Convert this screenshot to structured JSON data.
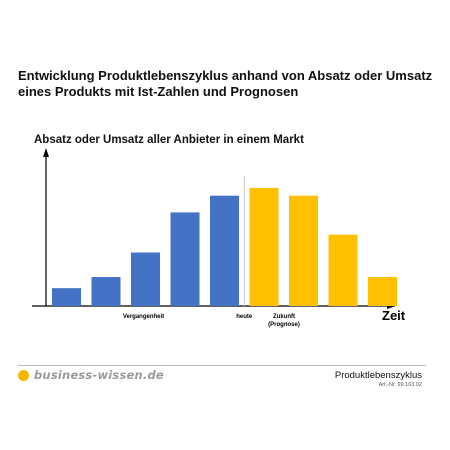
{
  "header": {
    "title": "Entwicklung Produktlebenszyklus anhand von Absatz oder Umsatz eines Produkts mit Ist-Zahlen und Prognosen"
  },
  "chart_data": {
    "type": "bar",
    "title": "Absatz oder Umsatz aller Anbieter in einem Markt",
    "xlabel": "Zeit",
    "ylabel": "",
    "ylim": [
      0,
      140
    ],
    "values": [
      16,
      26,
      48,
      84,
      99,
      106,
      99,
      64,
      26
    ],
    "bar_colors": [
      "#4472c4",
      "#4472c4",
      "#4472c4",
      "#4472c4",
      "#4472c4",
      "#ffc000",
      "#ffc000",
      "#ffc000",
      "#ffc000"
    ],
    "annotations": {
      "past": "Vergangenheit",
      "today": "heute",
      "future": "Zukunft",
      "future_sub": "(Prognose)"
    },
    "colors": {
      "actual": "#4472c4",
      "forecast": "#ffc000",
      "divider": "#c8c8c8"
    }
  },
  "footer": {
    "logo_text": "business-wissen.de",
    "doc_title": "Produktlebenszyklus",
    "doc_number": "Art.-Nr. 99.163.02"
  }
}
